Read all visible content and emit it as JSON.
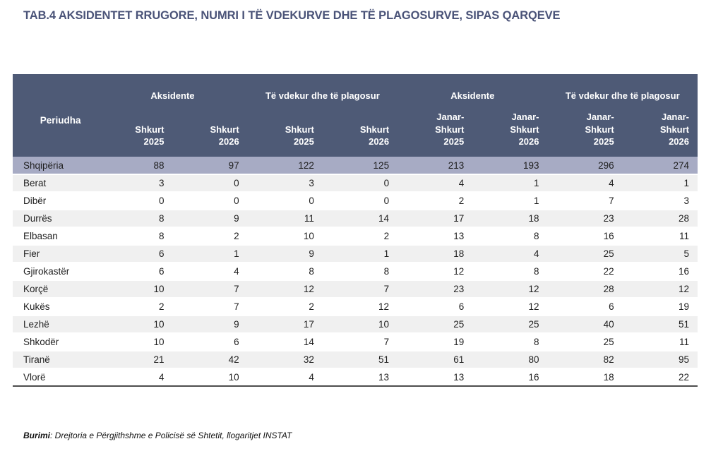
{
  "title": "TAB.4 AKSIDENTET RRUGORE, NUMRI I TË VDEKURVE DHE TË PLAGOSURVE, SIPAS QARQEVE",
  "colors": {
    "header_bg": "#4E5A76",
    "highlight_row_bg": "#A7ABC4",
    "stripe_row_bg": "#F0F0F0",
    "title_text": "#4A5378",
    "bottom_border": "#4d4d4d"
  },
  "table": {
    "period_label": "Periudha",
    "groups": [
      {
        "label": "Aksidente"
      },
      {
        "label": "Të vdekur dhe të plagosur"
      },
      {
        "label": "Aksidente"
      },
      {
        "label": "Të vdekur dhe të plagosur"
      }
    ],
    "sub_columns": [
      "Shkurt\n2025",
      "Shkurt\n2026",
      "Shkurt\n2025",
      "Shkurt\n2026",
      "Janar-\nShkurt\n2025",
      "Janar-\nShkurt\n2026",
      "Janar-\nShkurt\n2025",
      "Janar-\nShkurt\n2026"
    ],
    "rows": [
      {
        "label": "Shqipëria",
        "highlight": true,
        "values": [
          88,
          97,
          122,
          125,
          213,
          193,
          296,
          274
        ]
      },
      {
        "label": "Berat",
        "highlight": false,
        "values": [
          3,
          0,
          3,
          0,
          4,
          1,
          4,
          1
        ]
      },
      {
        "label": "Dibër",
        "highlight": false,
        "values": [
          0,
          0,
          0,
          0,
          2,
          1,
          7,
          3
        ]
      },
      {
        "label": "Durrës",
        "highlight": false,
        "values": [
          8,
          9,
          11,
          14,
          17,
          18,
          23,
          28
        ]
      },
      {
        "label": "Elbasan",
        "highlight": false,
        "values": [
          8,
          2,
          10,
          2,
          13,
          8,
          16,
          11
        ]
      },
      {
        "label": "Fier",
        "highlight": false,
        "values": [
          6,
          1,
          9,
          1,
          18,
          4,
          25,
          5
        ]
      },
      {
        "label": "Gjirokastër",
        "highlight": false,
        "values": [
          6,
          4,
          8,
          8,
          12,
          8,
          22,
          16
        ]
      },
      {
        "label": "Korçë",
        "highlight": false,
        "values": [
          10,
          7,
          12,
          7,
          23,
          12,
          28,
          12
        ]
      },
      {
        "label": "Kukës",
        "highlight": false,
        "values": [
          2,
          7,
          2,
          12,
          6,
          12,
          6,
          19
        ]
      },
      {
        "label": "Lezhë",
        "highlight": false,
        "values": [
          10,
          9,
          17,
          10,
          25,
          25,
          40,
          51
        ]
      },
      {
        "label": "Shkodër",
        "highlight": false,
        "values": [
          10,
          6,
          14,
          7,
          19,
          8,
          25,
          11
        ]
      },
      {
        "label": "Tiranë",
        "highlight": false,
        "values": [
          21,
          42,
          32,
          51,
          61,
          80,
          82,
          95
        ]
      },
      {
        "label": "Vlorë",
        "highlight": false,
        "values": [
          4,
          10,
          4,
          13,
          13,
          16,
          18,
          22
        ]
      }
    ]
  },
  "source": {
    "label": "Burimi",
    "text": ": Drejtoria e Përgjithshme e Policisë së Shtetit, llogaritjet INSTAT"
  }
}
